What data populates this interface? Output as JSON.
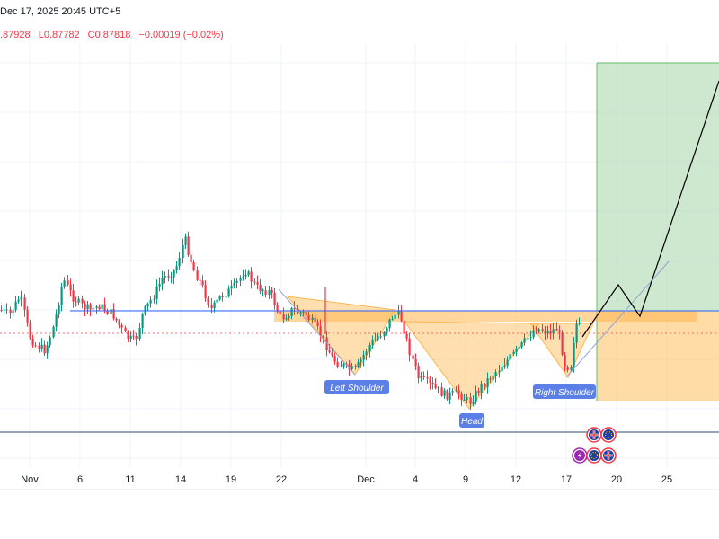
{
  "header": {
    "datetime": "Dec 17, 2025 20:45 UTC+5",
    "open_fragment": ".87928",
    "low": "L0.87782",
    "close": "C0.87818",
    "change": "−0.00019 (−0.02%)"
  },
  "colors": {
    "up": "#089981",
    "down": "#f23645",
    "pattern_fill": "#ffb74d",
    "target_fill": "#a5d6a7",
    "neckline": "#2962ff",
    "label_bg": "#5b7fe6"
  },
  "chart_data": {
    "type": "candlestick",
    "x_ticks": [
      "Nov",
      "6",
      "11",
      "14",
      "19",
      "22",
      "Dec",
      "4",
      "9",
      "12",
      "17",
      "20",
      "25"
    ],
    "approx_price_range": [
      0.8745,
      0.8835
    ],
    "last_close": 0.87818,
    "neckline_price": 0.8795,
    "annotations": {
      "left_shoulder": "Left Shoulder",
      "head": "Head",
      "right_shoulder": "Right Shoulder"
    },
    "projection": "bullish breakout above neckline toward green target zone",
    "event_icons": [
      "uk-flag-icon",
      "eu-flag-icon",
      "lightning-icon",
      "eu-flag-icon",
      "uk-flag-icon"
    ]
  }
}
